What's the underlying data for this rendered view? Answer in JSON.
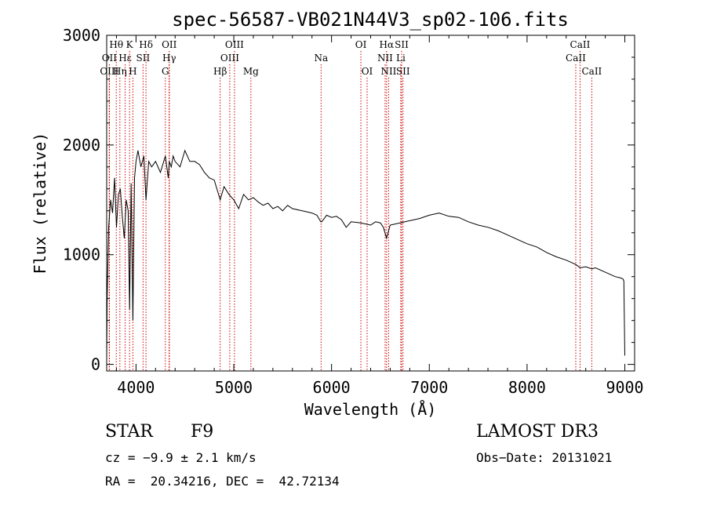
{
  "chart_data": {
    "type": "line",
    "title": "spec-56587-VB021N44V3_sp02-106.fits",
    "xlabel": "Wavelength (Å)",
    "ylabel": "Flux (relative)",
    "xlim": [
      3700,
      9100
    ],
    "ylim": [
      -60,
      3000
    ],
    "x_ticks": [
      "4000",
      "5000",
      "6000",
      "7000",
      "8000",
      "9000"
    ],
    "y_ticks": [
      "0",
      "1000",
      "2000",
      "3000"
    ],
    "x_tick_values": [
      4000,
      5000,
      6000,
      7000,
      8000,
      9000
    ],
    "y_tick_values": [
      0,
      1000,
      2000,
      3000
    ],
    "grid": false,
    "line_color": "#000000",
    "marker_color": "#cc0000",
    "series": [
      {
        "x": [
          3700,
          3705,
          3720,
          3740,
          3760,
          3780,
          3800,
          3820,
          3840,
          3860,
          3880,
          3900,
          3920,
          3934,
          3950,
          3968,
          3985,
          4000,
          4020,
          4050,
          4080,
          4102,
          4130,
          4160,
          4200,
          4250,
          4300,
          4330,
          4340,
          4360,
          4380,
          4400,
          4450,
          4500,
          4550,
          4600,
          4650,
          4700,
          4750,
          4800,
          4861,
          4900,
          4950,
          5000,
          5050,
          5100,
          5150,
          5200,
          5250,
          5300,
          5350,
          5400,
          5450,
          5500,
          5550,
          5600,
          5700,
          5800,
          5850,
          5890,
          5900,
          5950,
          6000,
          6050,
          6100,
          6150,
          6200,
          6300,
          6400,
          6450,
          6500,
          6530,
          6563,
          6600,
          6650,
          6700,
          6750,
          6800,
          6900,
          7000,
          7100,
          7200,
          7300,
          7400,
          7500,
          7600,
          7700,
          7800,
          7900,
          8000,
          8100,
          8200,
          8300,
          8400,
          8500,
          8542,
          8600,
          8662,
          8700,
          8800,
          8900,
          8950,
          8980,
          8990,
          9000
        ],
        "y": [
          50,
          600,
          1250,
          1500,
          1380,
          1700,
          1250,
          1550,
          1600,
          1350,
          1150,
          1500,
          1400,
          500,
          1650,
          400,
          1700,
          1850,
          1950,
          1800,
          1900,
          1500,
          1850,
          1800,
          1850,
          1750,
          1900,
          1700,
          1850,
          1800,
          1900,
          1850,
          1800,
          1950,
          1850,
          1850,
          1820,
          1750,
          1700,
          1680,
          1500,
          1620,
          1550,
          1500,
          1420,
          1550,
          1500,
          1520,
          1480,
          1450,
          1470,
          1420,
          1440,
          1400,
          1450,
          1420,
          1400,
          1380,
          1360,
          1300,
          1300,
          1360,
          1340,
          1350,
          1320,
          1250,
          1300,
          1290,
          1270,
          1300,
          1290,
          1250,
          1150,
          1270,
          1280,
          1290,
          1300,
          1310,
          1330,
          1360,
          1380,
          1350,
          1340,
          1300,
          1270,
          1250,
          1220,
          1180,
          1140,
          1100,
          1070,
          1020,
          980,
          950,
          910,
          880,
          890,
          870,
          880,
          840,
          800,
          790,
          780,
          760,
          80
        ]
      }
    ],
    "line_markers": [
      {
        "name": "Hθ",
        "x": 3798,
        "row": 1
      },
      {
        "name": "OII",
        "x": 3727,
        "row": 2
      },
      {
        "name": "OIII",
        "x": 3727,
        "row": 3
      },
      {
        "name": "Hη",
        "x": 3835,
        "row": 3
      },
      {
        "name": "Hε",
        "x": 3889,
        "row": 2
      },
      {
        "name": "K",
        "x": 3934,
        "row": 1
      },
      {
        "name": "H",
        "x": 3968,
        "row": 3
      },
      {
        "name": "SII",
        "x": 4072,
        "row": 2
      },
      {
        "name": "Hδ",
        "x": 4102,
        "row": 1
      },
      {
        "name": "OII",
        "x": 4340,
        "row": 1
      },
      {
        "name": "Hγ",
        "x": 4340,
        "row": 2
      },
      {
        "name": "G",
        "x": 4300,
        "row": 3
      },
      {
        "name": "Hβ",
        "x": 4861,
        "row": 3
      },
      {
        "name": "OIII",
        "x": 5007,
        "row": 1
      },
      {
        "name": "OIII",
        "x": 4959,
        "row": 2
      },
      {
        "name": "Mg",
        "x": 5175,
        "row": 3
      },
      {
        "name": "Na",
        "x": 5893,
        "row": 2
      },
      {
        "name": "OI",
        "x": 6300,
        "row": 1
      },
      {
        "name": "OI",
        "x": 6364,
        "row": 3
      },
      {
        "name": "Hα",
        "x": 6563,
        "row": 1
      },
      {
        "name": "NII",
        "x": 6548,
        "row": 2
      },
      {
        "name": "NII",
        "x": 6584,
        "row": 3
      },
      {
        "name": "SII",
        "x": 6717,
        "row": 1
      },
      {
        "name": "Li",
        "x": 6708,
        "row": 2
      },
      {
        "name": "SII",
        "x": 6731,
        "row": 3
      },
      {
        "name": "CaII",
        "x": 8542,
        "row": 1
      },
      {
        "name": "CaII",
        "x": 8498,
        "row": 2
      },
      {
        "name": "CaII",
        "x": 8662,
        "row": 3
      }
    ]
  },
  "info": {
    "object_class": "STAR",
    "subclass": "F9",
    "survey": "LAMOST DR3",
    "cz": "cz = −9.9 ± 2.1 km/s",
    "obs_date": "Obs−Date: 20131021",
    "coords": "RA =  20.34216, DEC =  42.72134"
  }
}
